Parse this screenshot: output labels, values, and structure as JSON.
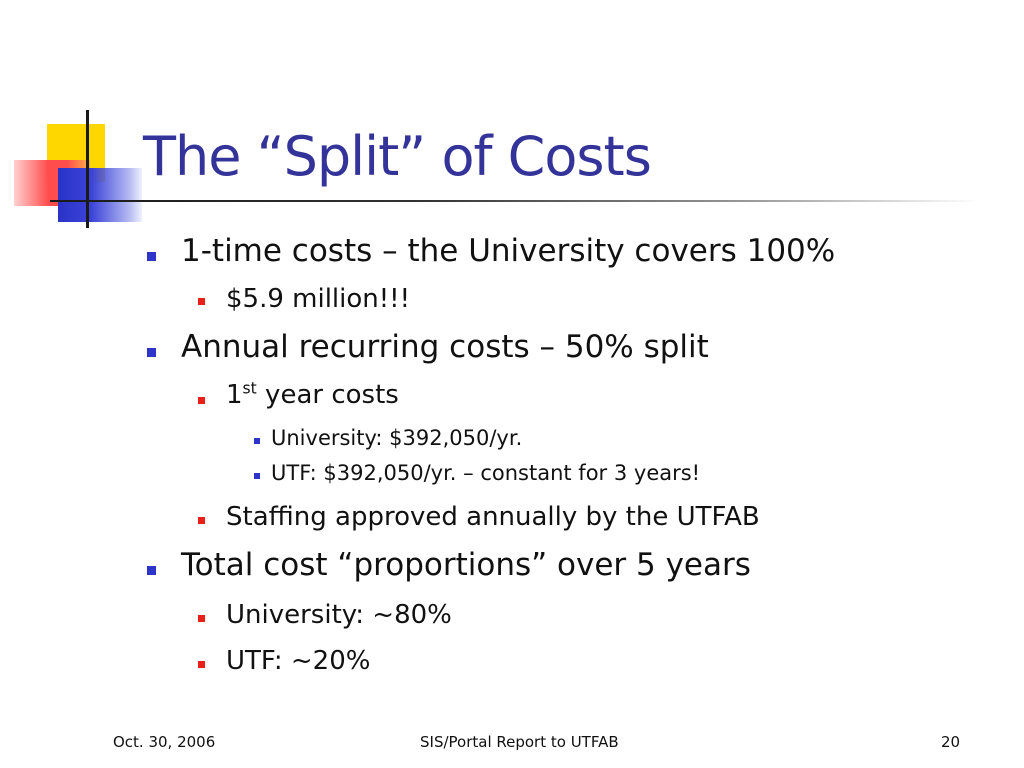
{
  "slide": {
    "title": "The “Split” of Costs",
    "items": [
      {
        "level": 1,
        "text": "1-time costs – the University covers 100%"
      },
      {
        "level": 2,
        "text": "$5.9 million!!!"
      },
      {
        "level": 1,
        "text": "Annual recurring costs – 50% split"
      },
      {
        "level": 2,
        "text_main": "1",
        "text_sup": "st",
        "text_rest": " year costs"
      },
      {
        "level": 3,
        "text": "University: $392,050/yr."
      },
      {
        "level": 3,
        "text": "UTF: $392,050/yr. – constant for 3 years!"
      },
      {
        "level": 2,
        "text": "Staffing approved annually by the UTFAB"
      },
      {
        "level": 1,
        "text": "Total cost “proportions” over 5 years"
      },
      {
        "level": 2,
        "text": "University: ~80%"
      },
      {
        "level": 2,
        "text": "UTF: ~20%"
      }
    ]
  },
  "footer": {
    "date": "Oct. 30, 2006",
    "center": "SIS/Portal Report to UTFAB",
    "page_number": "20"
  },
  "colors": {
    "title": "#333399",
    "bullet_level1": "#2d35c8",
    "bullet_level2": "#e8201a",
    "bullet_level3": "#2d35c8",
    "deco_yellow": "#ffd700",
    "deco_red": "#ff4d4d",
    "deco_blue": "#2a33c8"
  }
}
